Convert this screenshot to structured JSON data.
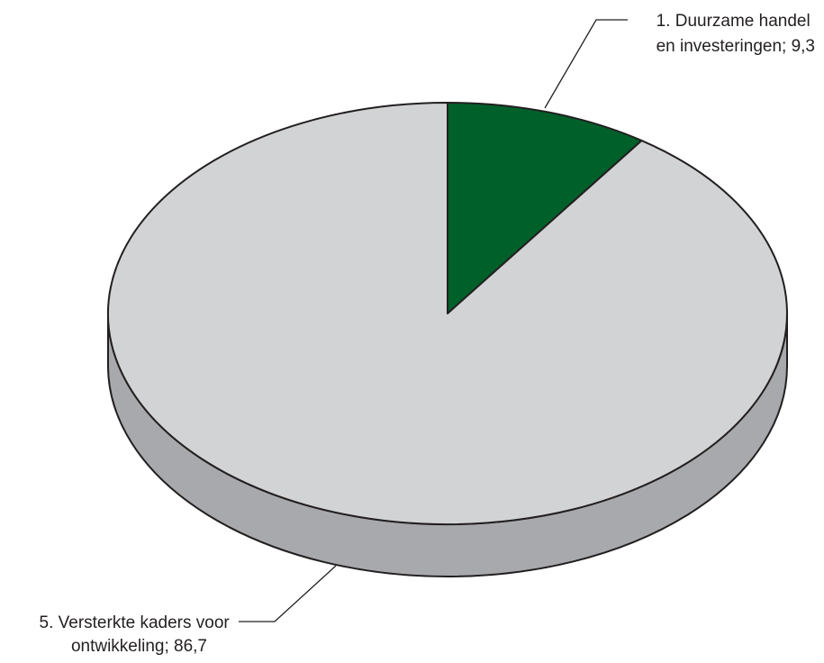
{
  "chart_data": {
    "type": "pie",
    "title": "",
    "style": "3d",
    "colors": {
      "top_default": "#d1d3d4",
      "side_default": "#a7a9ac",
      "outline": "#231f20"
    },
    "slices": [
      {
        "label_lines": [
          "1. Duurzame handel",
          "en investeringen; 9,3"
        ],
        "value": 9.3,
        "color": "#00602a",
        "side_color": "#004a20"
      },
      {
        "label_lines": [
          "5. Versterkte kaders voor",
          "ontwikkeling; 86,7"
        ],
        "value": 86.7,
        "color": "#d1d3d4",
        "side_color": "#a7a9ac"
      }
    ]
  }
}
